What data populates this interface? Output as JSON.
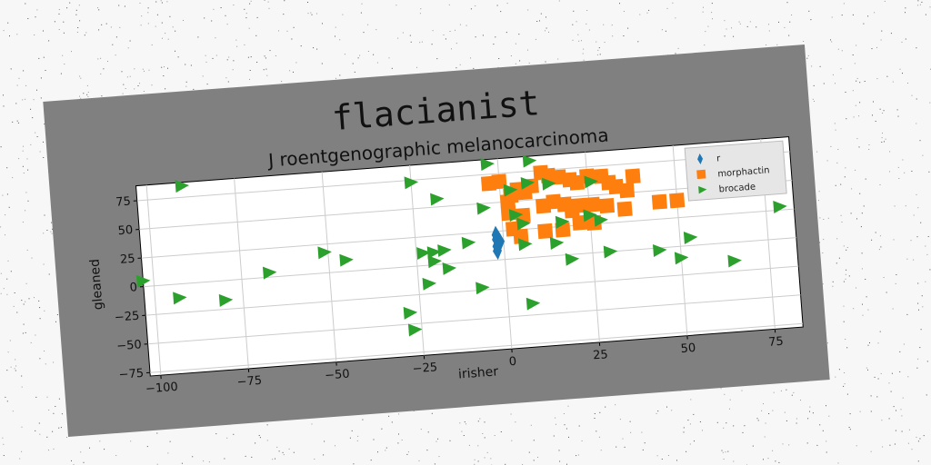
{
  "figure": {
    "suptitle": "flacianist"
  },
  "colors": {
    "background_card": "#808080",
    "plot_area": "#ffffff",
    "grid": "#cccccc",
    "series": [
      "#1f77b4",
      "#ff7f0e",
      "#2ca02c"
    ]
  },
  "chart_data": {
    "type": "scatter",
    "title": "J roentgenographic melanocarcinoma",
    "xlabel": "irisher",
    "ylabel": "gleaned",
    "xlim": [
      -103,
      83
    ],
    "ylim": [
      -78,
      88
    ],
    "xticks": [
      -100,
      -75,
      -50,
      -25,
      0,
      25,
      50,
      75
    ],
    "yticks": [
      -75,
      -50,
      -25,
      0,
      25,
      50,
      75
    ],
    "xtick_labels": [
      "−100",
      "−75",
      "−50",
      "−25",
      "0",
      "25",
      "50",
      "75"
    ],
    "ytick_labels": [
      "−75",
      "−50",
      "−25",
      "0",
      "25",
      "50",
      "75"
    ],
    "grid": true,
    "legend_placement": "top-right",
    "series": [
      {
        "name": "r",
        "marker": "thin_diamond",
        "color": "#1f77b4",
        "points": [
          [
            -2,
            18
          ],
          [
            -2,
            12
          ],
          [
            -2,
            22
          ],
          [
            -1,
            16
          ],
          [
            -2,
            8
          ]
        ]
      },
      {
        "name": "morphactin",
        "marker": "square",
        "color": "#ff7f0e",
        "points": [
          [
            -3,
            67
          ],
          [
            0,
            68
          ],
          [
            2,
            50
          ],
          [
            3,
            55
          ],
          [
            5,
            60
          ],
          [
            7,
            57
          ],
          [
            9,
            62
          ],
          [
            12,
            73
          ],
          [
            14,
            70
          ],
          [
            17,
            68
          ],
          [
            20,
            65
          ],
          [
            22,
            62
          ],
          [
            25,
            67
          ],
          [
            29,
            66
          ],
          [
            31,
            60
          ],
          [
            33,
            56
          ],
          [
            36,
            52
          ],
          [
            38,
            64
          ],
          [
            12,
            44
          ],
          [
            15,
            47
          ],
          [
            18,
            44
          ],
          [
            20,
            38
          ],
          [
            22,
            42
          ],
          [
            26,
            42
          ],
          [
            30,
            40
          ],
          [
            35,
            36
          ],
          [
            45,
            40
          ],
          [
            50,
            40
          ],
          [
            3,
            26
          ],
          [
            5,
            19
          ],
          [
            12,
            22
          ],
          [
            17,
            22
          ],
          [
            22,
            27
          ],
          [
            26,
            26
          ],
          [
            2,
            40
          ],
          [
            6,
            37
          ]
        ]
      },
      {
        "name": "brocade",
        "marker": "triangle_right",
        "color": "#2ca02c",
        "points": [
          [
            -90,
            85
          ],
          [
            -103,
            5
          ],
          [
            -93,
            -12
          ],
          [
            -80,
            -17
          ],
          [
            -67,
            4
          ],
          [
            -51,
            18
          ],
          [
            -45,
            10
          ],
          [
            -25,
            73
          ],
          [
            -18,
            57
          ],
          [
            -3,
            84
          ],
          [
            9,
            84
          ],
          [
            3,
            60
          ],
          [
            8,
            65
          ],
          [
            14,
            63
          ],
          [
            26,
            62
          ],
          [
            4,
            38
          ],
          [
            6,
            30
          ],
          [
            17,
            29
          ],
          [
            25,
            33
          ],
          [
            28,
            28
          ],
          [
            -10,
            17
          ],
          [
            -23,
            11
          ],
          [
            -20,
            11
          ],
          [
            -17,
            12
          ],
          [
            -16,
            -4
          ],
          [
            -22,
            -16
          ],
          [
            -28,
            -40
          ],
          [
            -27,
            -55
          ],
          [
            -7,
            -23
          ],
          [
            7,
            -40
          ],
          [
            6,
            12
          ],
          [
            15,
            11
          ],
          [
            19,
            -4
          ],
          [
            30,
            0
          ],
          [
            44,
            -2
          ],
          [
            53,
            7
          ],
          [
            50,
            -10
          ],
          [
            65,
            -16
          ],
          [
            79,
            28
          ],
          [
            -20,
            3
          ],
          [
            -5,
            46
          ]
        ]
      }
    ]
  }
}
